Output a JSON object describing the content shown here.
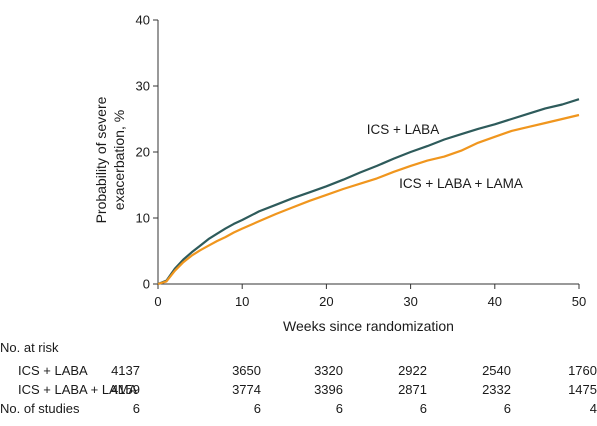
{
  "chart_data": {
    "type": "line",
    "xlabel": "Weeks since randomization",
    "ylabel_line1": "Probability of severe",
    "ylabel_line2": "exacerbation, %",
    "xlim": [
      0,
      50
    ],
    "ylim": [
      0,
      40
    ],
    "xticks": [
      0,
      10,
      20,
      30,
      40,
      50
    ],
    "yticks": [
      0,
      10,
      20,
      30,
      40
    ],
    "grid": false,
    "series": [
      {
        "name": "ICS + LABA",
        "color": "#2e5b5b",
        "x": [
          0,
          1,
          2,
          3,
          4,
          5,
          6,
          7,
          8,
          9,
          10,
          12,
          14,
          16,
          18,
          20,
          22,
          24,
          26,
          28,
          30,
          32,
          34,
          36,
          38,
          40,
          42,
          44,
          46,
          48,
          50
        ],
        "y": [
          0,
          0.5,
          2.3,
          3.7,
          4.8,
          5.8,
          6.8,
          7.6,
          8.4,
          9.1,
          9.7,
          11.0,
          12.0,
          13.0,
          13.9,
          14.8,
          15.8,
          16.9,
          17.9,
          19.0,
          20.0,
          20.9,
          21.9,
          22.7,
          23.5,
          24.2,
          25.0,
          25.8,
          26.6,
          27.2,
          28.0
        ]
      },
      {
        "name": "ICS + LABA + LAMA",
        "color": "#f0961e",
        "x": [
          0,
          1,
          2,
          3,
          4,
          5,
          6,
          7,
          8,
          9,
          10,
          12,
          14,
          16,
          18,
          20,
          22,
          24,
          26,
          28,
          30,
          32,
          34,
          36,
          38,
          40,
          42,
          44,
          46,
          48,
          50
        ],
        "y": [
          0,
          0.4,
          2.0,
          3.3,
          4.3,
          5.1,
          5.8,
          6.5,
          7.1,
          7.8,
          8.4,
          9.5,
          10.6,
          11.6,
          12.6,
          13.5,
          14.4,
          15.2,
          16.0,
          17.0,
          17.9,
          18.7,
          19.3,
          20.2,
          21.4,
          22.3,
          23.2,
          23.8,
          24.4,
          25.0,
          25.6
        ]
      }
    ],
    "risk_table": {
      "title": "No. at risk",
      "rows": [
        {
          "label": "ICS + LABA",
          "values": [
            4137,
            3650,
            3320,
            2922,
            2540,
            1760
          ]
        },
        {
          "label": "ICS + LABA + LAMA",
          "values": [
            4159,
            3774,
            3396,
            2871,
            2332,
            1475
          ]
        },
        {
          "label": "No. of studies",
          "values": [
            6,
            6,
            6,
            6,
            6,
            4
          ]
        }
      ]
    }
  }
}
